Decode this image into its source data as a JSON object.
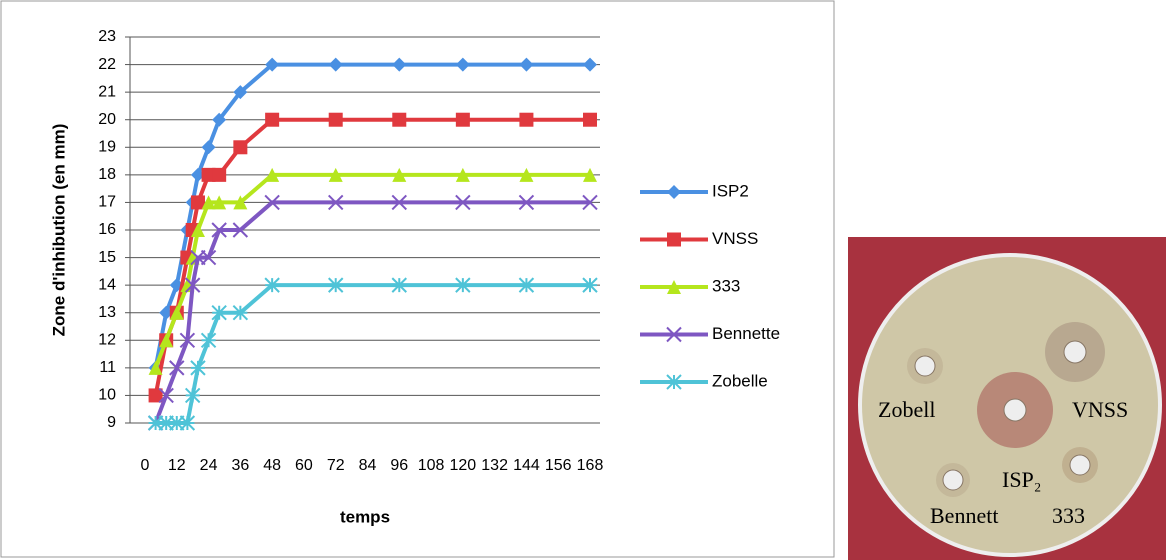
{
  "chart_data": {
    "type": "line",
    "x_label": "temps",
    "y_label": "Zone d'inhibution (en mm)",
    "x": [
      4,
      8,
      12,
      16,
      18,
      20,
      24,
      28,
      36,
      48,
      72,
      96,
      120,
      144,
      168
    ],
    "series": [
      {
        "name": "ISP2",
        "color": "#4a90e2",
        "marker": "diamond",
        "values": [
          11,
          13,
          14,
          16,
          17,
          18,
          19,
          20,
          21,
          22,
          22,
          22,
          22,
          22,
          22
        ]
      },
      {
        "name": "VNSS",
        "color": "#e0393e",
        "marker": "square",
        "values": [
          10,
          12,
          13,
          15,
          16,
          17,
          18,
          18,
          19,
          20,
          20,
          20,
          20,
          20,
          20
        ]
      },
      {
        "name": "333",
        "color": "#b5e61d",
        "marker": "triangle",
        "values": [
          11,
          12,
          13,
          14,
          15,
          16,
          17,
          17,
          17,
          18,
          18,
          18,
          18,
          18,
          18
        ]
      },
      {
        "name": "Bennette",
        "color": "#7e57c2",
        "marker": "x",
        "values": [
          9,
          10,
          11,
          12,
          14,
          15,
          15,
          16,
          16,
          17,
          17,
          17,
          17,
          17,
          17
        ]
      },
      {
        "name": "Zobelle",
        "color": "#4fc3d7",
        "marker": "star",
        "values": [
          9,
          9,
          9,
          9,
          10,
          11,
          12,
          13,
          13,
          14,
          14,
          14,
          14,
          14,
          14
        ]
      }
    ],
    "xlim": [
      0,
      168
    ],
    "xticks": [
      0,
      12,
      24,
      36,
      48,
      60,
      72,
      84,
      96,
      108,
      120,
      132,
      144,
      156,
      168
    ],
    "ylim": [
      9,
      23
    ],
    "yticks": [
      9,
      10,
      11,
      12,
      13,
      14,
      15,
      16,
      17,
      18,
      19,
      20,
      21,
      22,
      23
    ],
    "grid": true,
    "legend": "right"
  },
  "photo": {
    "labels": [
      "Zobell",
      "VNSS",
      "ISP₂",
      "Bennett",
      "333"
    ]
  }
}
